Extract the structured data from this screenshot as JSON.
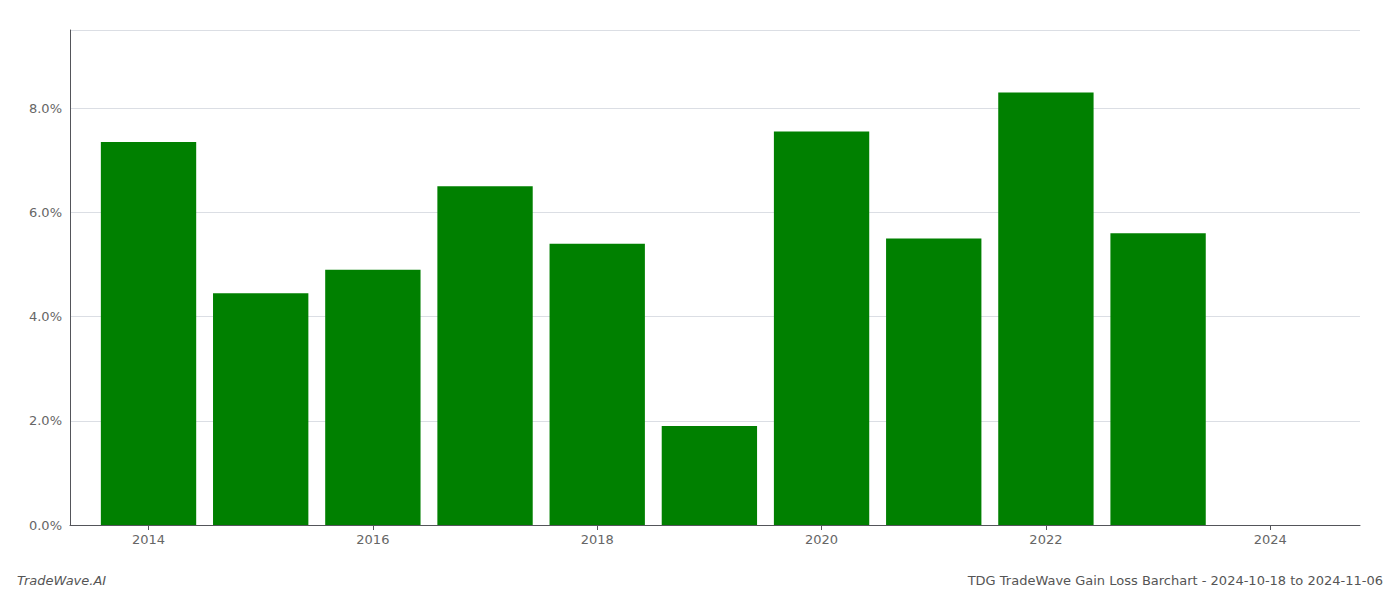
{
  "chart_data": {
    "type": "bar",
    "title": "TDG TradeWave Gain Loss Barchart - 2024-10-18 to 2024-11-06",
    "annotations": [
      "TradeWave.AI"
    ],
    "x": [
      2014,
      2015,
      2016,
      2017,
      2018,
      2019,
      2020,
      2021,
      2022,
      2023
    ],
    "values": [
      0.0735,
      0.0445,
      0.049,
      0.065,
      0.054,
      0.019,
      0.0755,
      0.055,
      0.083,
      0.056
    ],
    "color": "#008000",
    "xlim": [
      2013.3,
      2024.8
    ],
    "xticks": [
      2014,
      2016,
      2018,
      2020,
      2022,
      2024
    ],
    "ylim": [
      0,
      0.095
    ],
    "yticks": [
      {
        "value": 0.0,
        "label": "0.0%"
      },
      {
        "value": 0.02,
        "label": "2.0%"
      },
      {
        "value": 0.04,
        "label": "4.0%"
      },
      {
        "value": 0.06,
        "label": "6.0%"
      },
      {
        "value": 0.08,
        "label": "8.0%"
      }
    ],
    "grid": true
  }
}
